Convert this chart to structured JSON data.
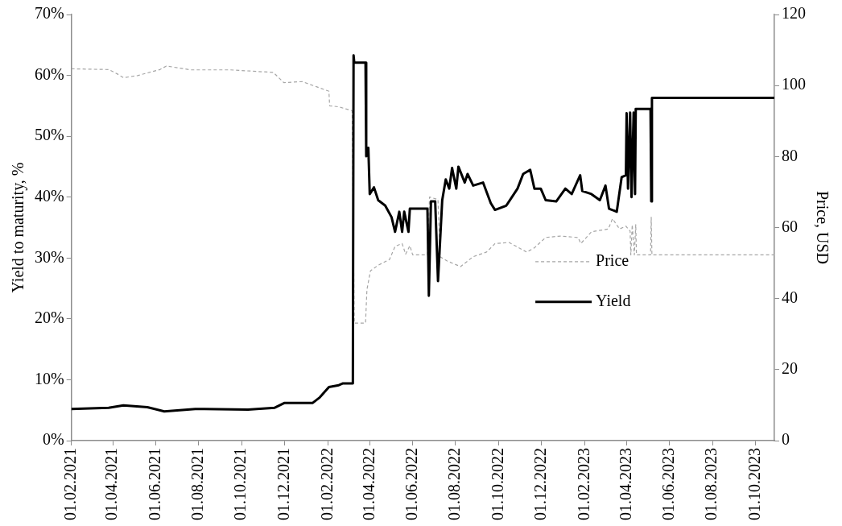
{
  "chart_data": {
    "type": "line",
    "ylabel": "Yield to maturity, %",
    "y2label": "Price, USD",
    "legend": "right",
    "grid": false,
    "marker": "none",
    "xlim": [
      "2021-02-01",
      "2023-10-28"
    ],
    "xticks": [
      {
        "value": "2021-02-01",
        "label": "01.02.2021"
      },
      {
        "value": "2021-04-01",
        "label": "01.04.2021"
      },
      {
        "value": "2021-06-01",
        "label": "01.06.2021"
      },
      {
        "value": "2021-08-01",
        "label": "01.08.2021"
      },
      {
        "value": "2021-10-01",
        "label": "01.10.2021"
      },
      {
        "value": "2021-12-01",
        "label": "01.12.2021"
      },
      {
        "value": "2022-02-01",
        "label": "01.02.2022"
      },
      {
        "value": "2022-04-01",
        "label": "01.04.2022"
      },
      {
        "value": "2022-06-01",
        "label": "01.06.2022"
      },
      {
        "value": "2022-08-01",
        "label": "01.08.2022"
      },
      {
        "value": "2022-10-01",
        "label": "01.10.2022"
      },
      {
        "value": "2022-12-01",
        "label": "01.12.2022"
      },
      {
        "value": "2023-02-01",
        "label": "01.02.2023"
      },
      {
        "value": "2023-04-01",
        "label": "01.04.2023"
      },
      {
        "value": "2023-06-01",
        "label": "01.06.2023"
      },
      {
        "value": "2023-08-01",
        "label": "01.08.2023"
      },
      {
        "value": "2023-10-01",
        "label": "01.10.2023"
      }
    ],
    "ylim": [
      0,
      70
    ],
    "yticks": [
      {
        "value": 0,
        "label": "0%"
      },
      {
        "value": 10,
        "label": "10%"
      },
      {
        "value": 20,
        "label": "20%"
      },
      {
        "value": 30,
        "label": "30%"
      },
      {
        "value": 40,
        "label": "40%"
      },
      {
        "value": 50,
        "label": "50%"
      },
      {
        "value": 60,
        "label": "60%"
      },
      {
        "value": 70,
        "label": "70%"
      }
    ],
    "y2lim": [
      0,
      120
    ],
    "y2ticks": [
      0,
      20,
      40,
      60,
      80,
      100,
      120
    ],
    "series": [
      {
        "name": "Price",
        "axis": "y2",
        "color": "#a6a6a6",
        "line_style": "dashed",
        "x": [
          "2021-02-01",
          "2021-03-26",
          "2021-04-07",
          "2021-04-16",
          "2021-05-06",
          "2021-06-07",
          "2021-06-16",
          "2021-07-21",
          "2021-09-15",
          "2021-11-15",
          "2021-11-30",
          "2021-12-26",
          "2022-01-16",
          "2022-02-02",
          "2022-02-03",
          "2022-02-16",
          "2022-03-07",
          "2022-03-10",
          "2022-03-26",
          "2022-03-28",
          "2022-04-02",
          "2022-04-13",
          "2022-04-29",
          "2022-05-07",
          "2022-05-17",
          "2022-05-22",
          "2022-05-28",
          "2022-06-01",
          "2022-06-22",
          "2022-06-25",
          "2022-07-07",
          "2022-07-10",
          "2022-07-20",
          "2022-08-08",
          "2022-08-26",
          "2022-09-14",
          "2022-09-26",
          "2022-10-16",
          "2022-11-10",
          "2022-11-21",
          "2022-12-07",
          "2022-12-28",
          "2023-01-22",
          "2023-01-26",
          "2023-02-10",
          "2023-03-06",
          "2023-03-12",
          "2023-03-22",
          "2023-03-31",
          "2023-04-06",
          "2023-04-07",
          "2023-04-09",
          "2023-04-12",
          "2023-04-14",
          "2023-04-15",
          "2023-05-05",
          "2023-05-06",
          "2023-05-07",
          "2023-10-28"
        ],
        "values": [
          104.7,
          104.5,
          103.3,
          102.2,
          102.8,
          104.5,
          105.5,
          104.4,
          104.4,
          103.7,
          100.8,
          101.1,
          99.6,
          98.4,
          94.3,
          94.0,
          92.9,
          33.1,
          33.1,
          42.5,
          47.8,
          49.4,
          51.0,
          54.7,
          55.5,
          52.5,
          54.9,
          52.3,
          52.3,
          68.6,
          67.9,
          51.8,
          50.6,
          49.0,
          51.8,
          53.1,
          55.5,
          55.8,
          53.1,
          54.3,
          57.2,
          57.6,
          57.2,
          55.5,
          58.8,
          59.6,
          62.5,
          59.6,
          60.4,
          59.0,
          52.3,
          60.8,
          52.3,
          60.8,
          52.3,
          52.3,
          62.9,
          52.3,
          52.3
        ]
      },
      {
        "name": "Yield",
        "color": "#000000",
        "line_style": "solid",
        "x": [
          "2021-02-01",
          "2021-03-26",
          "2021-04-16",
          "2021-05-20",
          "2021-06-13",
          "2021-07-27",
          "2021-10-10",
          "2021-11-17",
          "2021-12-01",
          "2022-01-10",
          "2022-01-20",
          "2022-02-02",
          "2022-02-16",
          "2022-02-22",
          "2022-03-08",
          "2022-03-09",
          "2022-03-10",
          "2022-03-26",
          "2022-03-27",
          "2022-03-30",
          "2022-04-01",
          "2022-04-07",
          "2022-04-13",
          "2022-04-23",
          "2022-05-02",
          "2022-05-07",
          "2022-05-13",
          "2022-05-17",
          "2022-05-20",
          "2022-05-26",
          "2022-05-28",
          "2022-06-22",
          "2022-06-24",
          "2022-06-27",
          "2022-07-03",
          "2022-07-07",
          "2022-07-13",
          "2022-07-18",
          "2022-07-23",
          "2022-07-27",
          "2022-08-02",
          "2022-08-05",
          "2022-08-14",
          "2022-08-18",
          "2022-08-26",
          "2022-09-09",
          "2022-09-20",
          "2022-09-26",
          "2022-10-12",
          "2022-10-28",
          "2022-11-05",
          "2022-11-15",
          "2022-11-21",
          "2022-11-30",
          "2022-12-07",
          "2022-12-22",
          "2023-01-04",
          "2023-01-13",
          "2023-01-25",
          "2023-01-28",
          "2023-02-10",
          "2023-02-22",
          "2023-03-02",
          "2023-03-07",
          "2023-03-18",
          "2023-03-25",
          "2023-03-31",
          "2023-04-01",
          "2023-04-03",
          "2023-04-06",
          "2023-04-08",
          "2023-04-11",
          "2023-04-13",
          "2023-04-14",
          "2023-05-05",
          "2023-05-06",
          "2023-05-07",
          "2023-10-28"
        ],
        "values": [
          5.2,
          5.4,
          5.8,
          5.5,
          4.8,
          5.2,
          5.1,
          5.4,
          6.2,
          6.2,
          7.1,
          8.8,
          9.1,
          9.4,
          9.4,
          63.3,
          62.1,
          62.1,
          46.7,
          48.1,
          40.5,
          41.6,
          39.5,
          38.6,
          36.7,
          34.3,
          37.6,
          34.3,
          37.6,
          34.3,
          38.1,
          38.1,
          23.8,
          39.3,
          39.3,
          26.2,
          39.5,
          42.9,
          41.4,
          44.8,
          41.4,
          45.0,
          42.4,
          43.8,
          41.9,
          42.4,
          39.0,
          37.9,
          38.6,
          41.4,
          43.8,
          44.5,
          41.4,
          41.4,
          39.5,
          39.3,
          41.4,
          40.5,
          43.6,
          41.0,
          40.5,
          39.5,
          41.9,
          38.1,
          37.6,
          43.3,
          43.6,
          53.8,
          41.4,
          53.9,
          40.0,
          53.9,
          40.5,
          54.5,
          54.5,
          39.3,
          56.3,
          56.3
        ]
      }
    ]
  }
}
